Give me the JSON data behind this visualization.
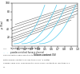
{
  "ylabel": "ρ (%a)",
  "xlabel": "Silicon content (%)",
  "ylim": [
    0,
    100
  ],
  "xlim": [
    0.0,
    1.0
  ],
  "ytick_vals": [
    20,
    40,
    60,
    80,
    100
  ],
  "xtick_vals": [
    0.1,
    0.2,
    0.3,
    0.4,
    0.5,
    0.6,
    0.7,
    0.8,
    0.9,
    1.0
  ],
  "straight_lines_color": "#444444",
  "curved_lines_color": "#55ccee",
  "background_color": "#ffffff",
  "legend_line1": "injection into converter ladles",
  "legend_line2": "powder-enriched furnace channel",
  "caption": "The converter ladle injection technique optimizes, for\ninitial silicon contents of less than 0.5%; a better\noxygen yield and, consequently, final silicon contents of less than 0.1\n%."
}
